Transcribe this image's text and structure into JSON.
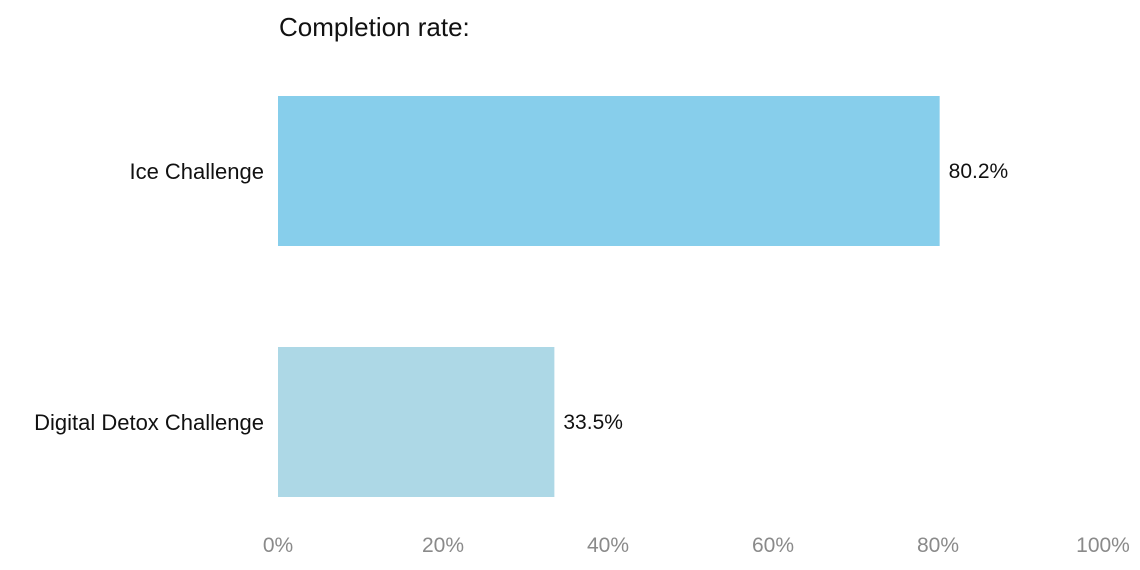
{
  "chart_data": {
    "type": "bar",
    "orientation": "horizontal",
    "title": "Completion rate:",
    "categories": [
      "Ice Challenge",
      "Digital Detox Challenge"
    ],
    "values": [
      80.2,
      33.5
    ],
    "value_labels": [
      "80.2%",
      "33.5%"
    ],
    "colors": [
      "#87CEEB",
      "#ADD8E6"
    ],
    "xlim": [
      0,
      100
    ],
    "xticks": [
      0,
      20,
      40,
      60,
      80,
      100
    ],
    "xtick_labels": [
      "0%",
      "20%",
      "40%",
      "60%",
      "80%",
      "100%"
    ],
    "grid": false,
    "xlabel": "",
    "ylabel": ""
  }
}
